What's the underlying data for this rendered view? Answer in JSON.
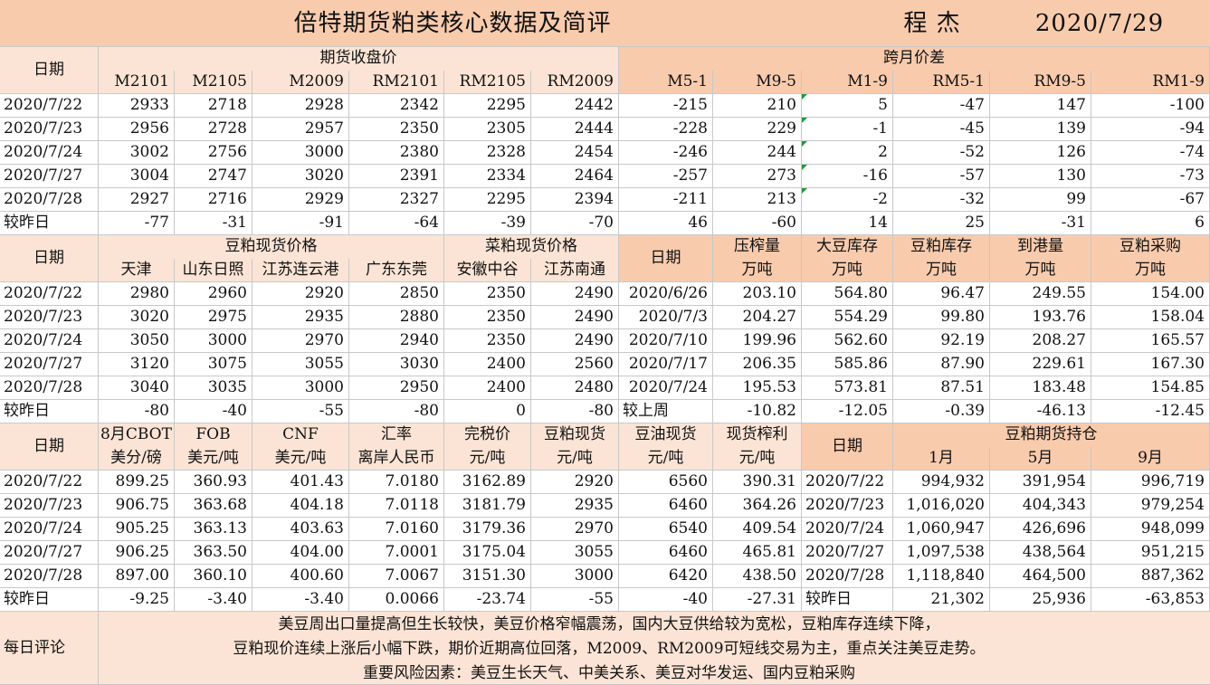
{
  "title": "倍特期货粕类核心数据及简评",
  "author": "程 杰",
  "date": "2020/7/29",
  "s1": {
    "date_label": "日期",
    "futures_title": "期货收盘价",
    "spread_title": "跨月价差",
    "cols": [
      "M2101",
      "M2105",
      "M2009",
      "RM2101",
      "RM2105",
      "RM2009",
      "M5-1",
      "M9-5",
      "M1-9",
      "RM5-1",
      "RM9-5",
      "RM1-9"
    ],
    "rows": [
      {
        "date": "2020/7/22",
        "v": [
          "2933",
          "2718",
          "2928",
          "2342",
          "2295",
          "2442",
          "-215",
          "210",
          "5",
          "-47",
          "147",
          "-100"
        ]
      },
      {
        "date": "2020/7/23",
        "v": [
          "2956",
          "2728",
          "2957",
          "2350",
          "2305",
          "2444",
          "-228",
          "229",
          "-1",
          "-45",
          "139",
          "-94"
        ]
      },
      {
        "date": "2020/7/24",
        "v": [
          "3002",
          "2756",
          "3000",
          "2380",
          "2328",
          "2454",
          "-246",
          "244",
          "2",
          "-52",
          "126",
          "-74"
        ]
      },
      {
        "date": "2020/7/27",
        "v": [
          "3004",
          "2747",
          "3020",
          "2391",
          "2334",
          "2464",
          "-257",
          "273",
          "-16",
          "-57",
          "130",
          "-73"
        ]
      },
      {
        "date": "2020/7/28",
        "v": [
          "2927",
          "2716",
          "2929",
          "2327",
          "2295",
          "2394",
          "-211",
          "213",
          "-2",
          "-32",
          "99",
          "-67"
        ]
      }
    ],
    "change": {
      "date": "较昨日",
      "v": [
        "-77",
        "-31",
        "-91",
        "-64",
        "-39",
        "-70",
        "46",
        "-60",
        "14",
        "25",
        "-31",
        "6"
      ]
    }
  },
  "s2": {
    "date_label": "日期",
    "meal_spot_title": "豆粕现货价格",
    "rapeseed_spot_title": "菜粕现货价格",
    "left_cols": [
      "天津",
      "山东日照",
      "江苏连云港",
      "广东东莞",
      "安徽中谷",
      "江苏南通"
    ],
    "right_date_label": "日期",
    "right_cols": [
      {
        "name": "压榨量",
        "unit": "万吨"
      },
      {
        "name": "大豆库存",
        "unit": "万吨"
      },
      {
        "name": "豆粕库存",
        "unit": "万吨"
      },
      {
        "name": "到港量",
        "unit": "万吨"
      },
      {
        "name": "豆粕采购",
        "unit": "万吨"
      }
    ],
    "rows": [
      {
        "date": "2020/7/22",
        "v": [
          "2980",
          "2960",
          "2920",
          "2850",
          "2350",
          "2490"
        ],
        "rdate": "2020/6/26",
        "r": [
          "203.10",
          "564.80",
          "96.47",
          "249.55",
          "154.00"
        ]
      },
      {
        "date": "2020/7/23",
        "v": [
          "3020",
          "2975",
          "2935",
          "2880",
          "2350",
          "2490"
        ],
        "rdate": "2020/7/3",
        "r": [
          "204.27",
          "554.29",
          "99.80",
          "193.76",
          "158.04"
        ]
      },
      {
        "date": "2020/7/24",
        "v": [
          "3050",
          "3000",
          "2970",
          "2940",
          "2350",
          "2490"
        ],
        "rdate": "2020/7/10",
        "r": [
          "199.96",
          "562.60",
          "92.19",
          "208.27",
          "165.57"
        ]
      },
      {
        "date": "2020/7/27",
        "v": [
          "3120",
          "3075",
          "3055",
          "3030",
          "2400",
          "2560"
        ],
        "rdate": "2020/7/17",
        "r": [
          "206.35",
          "585.86",
          "87.90",
          "229.61",
          "167.30"
        ]
      },
      {
        "date": "2020/7/28",
        "v": [
          "3040",
          "3035",
          "3000",
          "2950",
          "2400",
          "2480"
        ],
        "rdate": "2020/7/24",
        "r": [
          "195.53",
          "573.81",
          "87.51",
          "183.48",
          "154.85"
        ]
      }
    ],
    "change": {
      "date": "较昨日",
      "v": [
        "-80",
        "-40",
        "-55",
        "-80",
        "0",
        "-80"
      ],
      "rdate": "较上周",
      "r": [
        "-10.82",
        "-12.05",
        "-0.39",
        "-46.13",
        "-12.45"
      ]
    }
  },
  "s3": {
    "date_label": "日期",
    "cols": [
      {
        "name": "8月CBOT",
        "unit": "美分/磅"
      },
      {
        "name": "FOB",
        "unit": "美元/吨"
      },
      {
        "name": "CNF",
        "unit": "美元/吨"
      },
      {
        "name": "汇率",
        "unit": "离岸人民币"
      },
      {
        "name": "完税价",
        "unit": "元/吨"
      },
      {
        "name": "豆粕现货",
        "unit": "元/吨"
      },
      {
        "name": "豆油现货",
        "unit": "元/吨"
      },
      {
        "name": "现货榨利",
        "unit": "元/吨"
      }
    ],
    "right_date_label": "日期",
    "position_title": "豆粕期货持仓",
    "right_cols": [
      "1月",
      "5月",
      "9月"
    ],
    "rows": [
      {
        "date": "2020/7/22",
        "v": [
          "899.25",
          "360.93",
          "401.43",
          "7.0180",
          "3162.89",
          "2920",
          "6560",
          "390.31"
        ],
        "rdate": "2020/7/22",
        "r": [
          "994,932",
          "391,954",
          "996,719"
        ]
      },
      {
        "date": "2020/7/23",
        "v": [
          "906.75",
          "363.68",
          "404.18",
          "7.0118",
          "3181.79",
          "2935",
          "6460",
          "364.26"
        ],
        "rdate": "2020/7/23",
        "r": [
          "1,016,020",
          "404,343",
          "979,254"
        ]
      },
      {
        "date": "2020/7/24",
        "v": [
          "905.25",
          "363.13",
          "403.63",
          "7.0160",
          "3179.36",
          "2970",
          "6540",
          "409.54"
        ],
        "rdate": "2020/7/24",
        "r": [
          "1,060,947",
          "426,696",
          "948,099"
        ]
      },
      {
        "date": "2020/7/27",
        "v": [
          "906.25",
          "363.50",
          "404.00",
          "7.0001",
          "3175.04",
          "3055",
          "6460",
          "465.81"
        ],
        "rdate": "2020/7/27",
        "r": [
          "1,097,538",
          "438,564",
          "951,215"
        ]
      },
      {
        "date": "2020/7/28",
        "v": [
          "897.00",
          "360.10",
          "400.60",
          "7.0067",
          "3151.30",
          "3000",
          "6420",
          "438.50"
        ],
        "rdate": "2020/7/28",
        "r": [
          "1,118,840",
          "464,500",
          "887,362"
        ]
      }
    ],
    "change": {
      "date": "较昨日",
      "v": [
        "-9.25",
        "-3.40",
        "-3.40",
        "0.0066",
        "-23.74",
        "-55",
        "-40",
        "-27.31"
      ],
      "rdate": "较昨日",
      "r": [
        "21,302",
        "25,936",
        "-63,853"
      ]
    }
  },
  "comment": {
    "label": "每日评论",
    "lines": [
      "美豆周出口量提高但生长较快，美豆价格窄幅震荡，国内大豆供给较为宽松，豆粕库存连续下降，",
      "豆粕现价连续上涨后小幅下跌，期价近期高位回落，M2009、RM2009可短线交易为主，重点关注美豆走势。",
      "重要风险因素：美豆生长天气、中美关系、美豆对华发运、国内豆粕采购"
    ]
  },
  "colors": {
    "header_light": "#fbe4d5",
    "header_dark": "#f8cbad",
    "grid": "#c8c8c8",
    "flag": "#1f9a3a"
  }
}
